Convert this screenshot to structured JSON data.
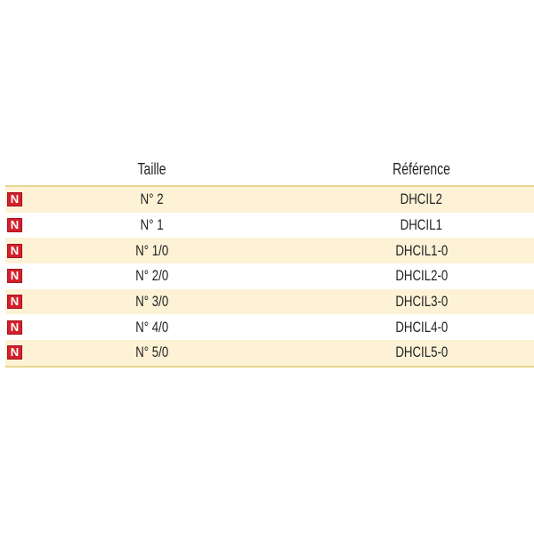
{
  "headers": {
    "taille": "Taille",
    "reference": "Référence"
  },
  "badge_label": "N",
  "colors": {
    "badge": "#d4202c",
    "row_alt": "#fdf2d6",
    "rule": "#e9d78f"
  },
  "rows": [
    {
      "taille": "N° 2",
      "reference": "DHCIL2"
    },
    {
      "taille": "N° 1",
      "reference": "DHCIL1"
    },
    {
      "taille": "N° 1/0",
      "reference": "DHCIL1-0"
    },
    {
      "taille": "N° 2/0",
      "reference": "DHCIL2-0"
    },
    {
      "taille": "N° 3/0",
      "reference": "DHCIL3-0"
    },
    {
      "taille": "N° 4/0",
      "reference": "DHCIL4-0"
    },
    {
      "taille": "N° 5/0",
      "reference": "DHCIL5-0"
    }
  ]
}
